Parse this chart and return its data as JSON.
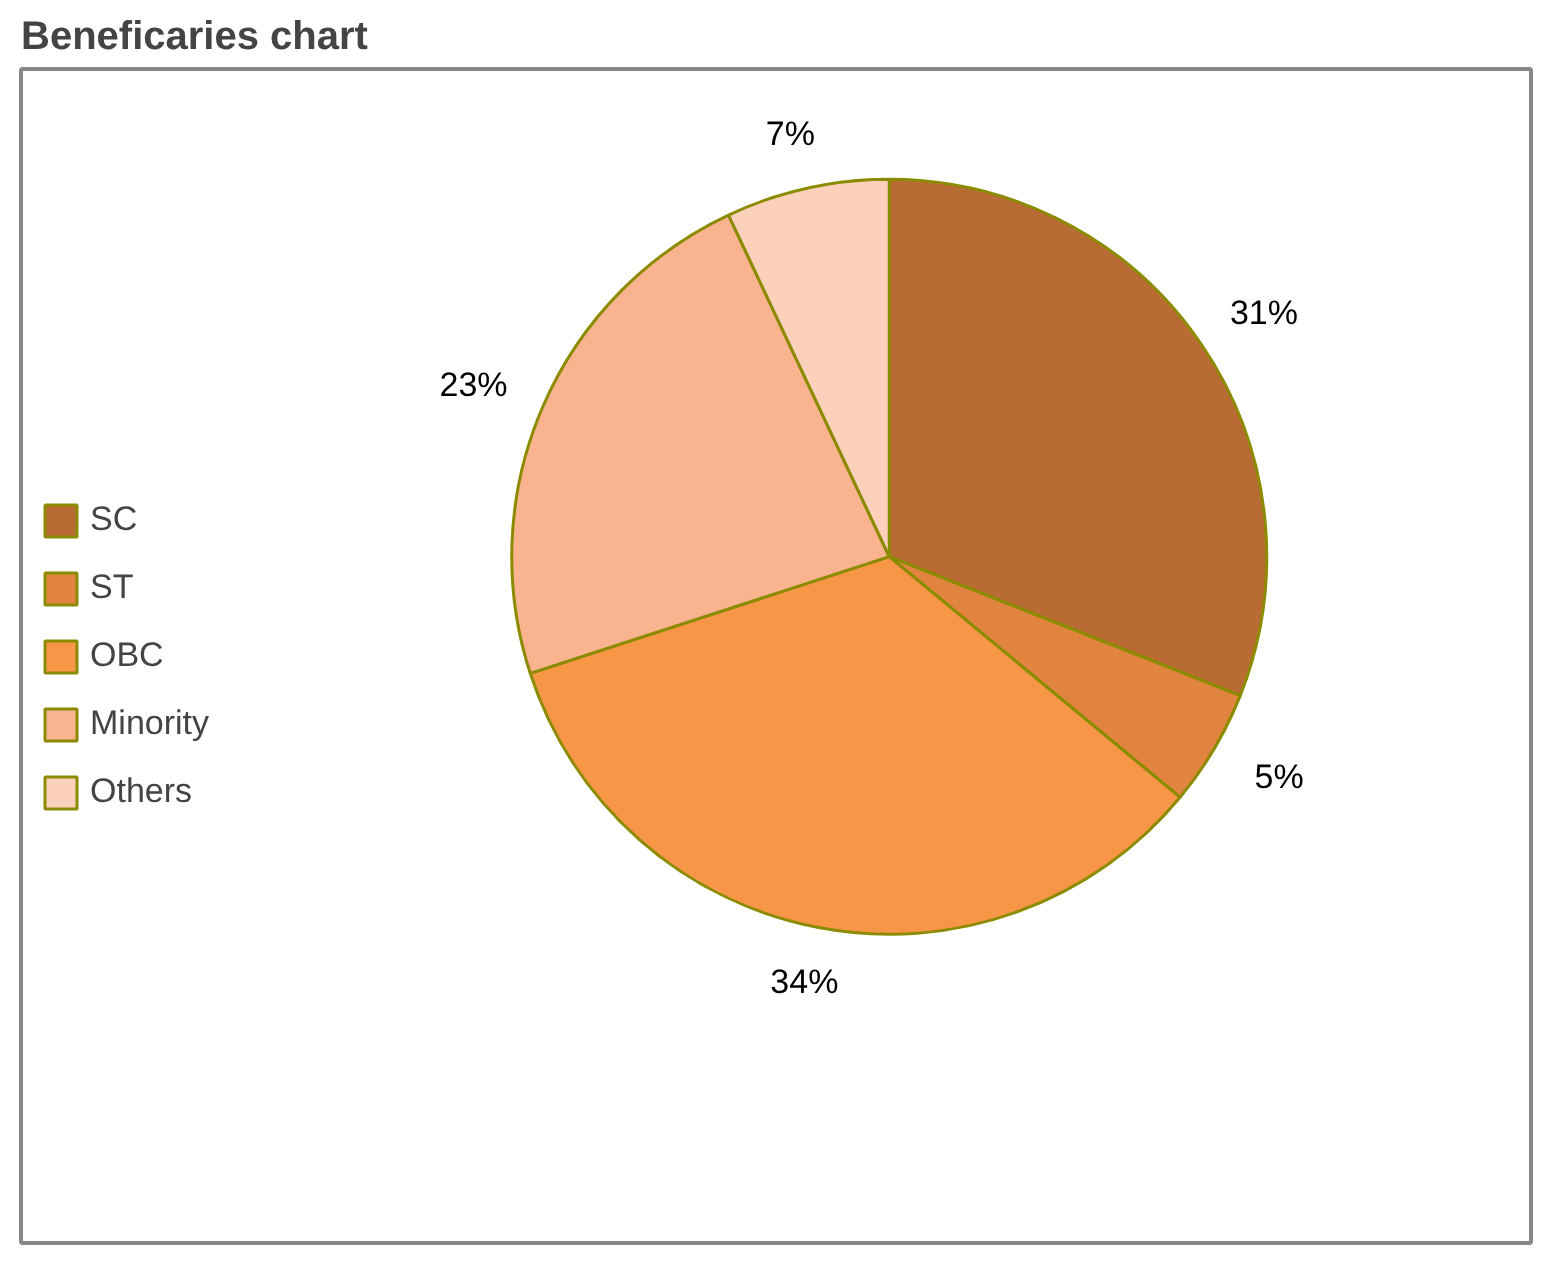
{
  "chart_data": {
    "type": "pie",
    "title": "Beneficaries chart",
    "categories": [
      "SC",
      "ST",
      "OBC",
      "Minority",
      "Others"
    ],
    "values": [
      31,
      5,
      34,
      23,
      7
    ],
    "colors": [
      "#b96b34",
      "#e0843f",
      "#f79646",
      "#f9b48f",
      "#fbd1bc"
    ],
    "value_labels": [
      "31%",
      "5%",
      "34%",
      "23%",
      "7%"
    ],
    "legend": "left"
  }
}
